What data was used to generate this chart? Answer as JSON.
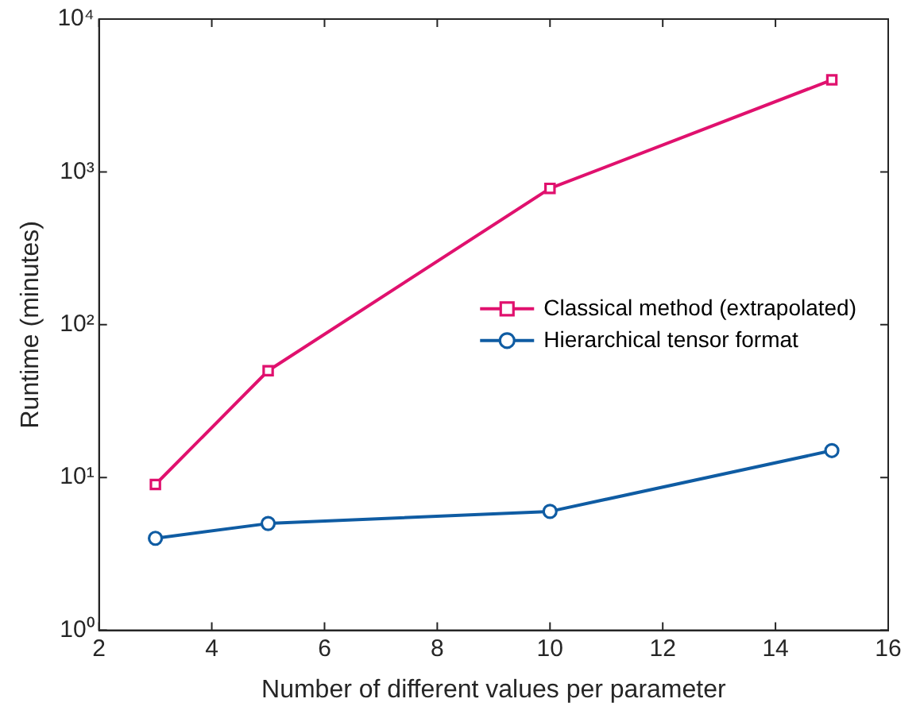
{
  "chart_data": {
    "type": "line",
    "xlabel": "Number of different values per parameter",
    "ylabel": "Runtime (minutes)",
    "x": [
      3,
      5,
      10,
      15
    ],
    "series": [
      {
        "name": "Classical method (extrapolated)",
        "color": "#e0116e",
        "marker": "square",
        "values": [
          9,
          50,
          780,
          4000
        ]
      },
      {
        "name": "Hierarchical tensor format",
        "color": "#0f5ca3",
        "marker": "circle",
        "values": [
          4,
          5,
          6,
          15
        ]
      }
    ],
    "log": "y",
    "xlim": [
      2,
      16
    ],
    "xticks": [
      2,
      4,
      6,
      8,
      10,
      12,
      14,
      16
    ],
    "ylim": [
      1,
      10000
    ],
    "yticks": [
      {
        "value": 1,
        "label": "10⁰"
      },
      {
        "value": 10,
        "label": "10¹"
      },
      {
        "value": 100,
        "label": "10²"
      },
      {
        "value": 1000,
        "label": "10³"
      },
      {
        "value": 10000,
        "label": "10⁴"
      }
    ],
    "grid": false,
    "legend": "right",
    "line_style": "solid"
  }
}
